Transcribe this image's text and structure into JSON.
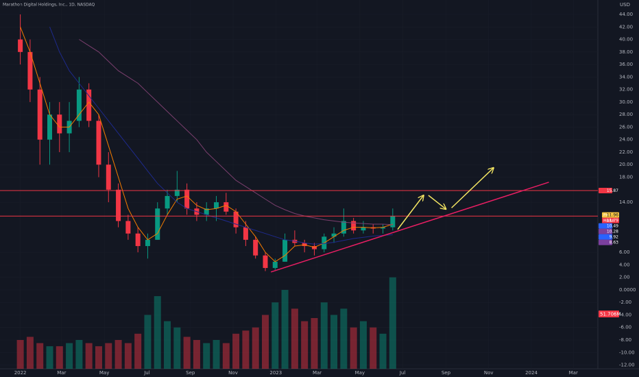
{
  "chart_data": {
    "type": "candlestick",
    "title": "Marathon Digital Holdings, Inc., 1D, NASDAQ",
    "currency": "USD",
    "up_color": "#089981",
    "down_color": "#f23645",
    "xlim": [
      -29,
      825
    ],
    "ylim": [
      -12.6,
      46.3
    ],
    "xticks": [
      {
        "value": 0,
        "label": "2022"
      },
      {
        "value": 59,
        "label": "Mar"
      },
      {
        "value": 120,
        "label": "May"
      },
      {
        "value": 181,
        "label": "Jul"
      },
      {
        "value": 243,
        "label": "Sep"
      },
      {
        "value": 304,
        "label": "Nov"
      },
      {
        "value": 365,
        "label": "2023"
      },
      {
        "value": 424,
        "label": "Mar"
      },
      {
        "value": 485,
        "label": "May"
      },
      {
        "value": 546,
        "label": "Jul"
      },
      {
        "value": 608,
        "label": "Sep"
      },
      {
        "value": 669,
        "label": "Nov"
      },
      {
        "value": 730,
        "label": "2024"
      },
      {
        "value": 790,
        "label": "Mar"
      }
    ],
    "yticks": [
      {
        "value": 44,
        "label": "44.00"
      },
      {
        "value": 42,
        "label": "42.00"
      },
      {
        "value": 40,
        "label": "40.00"
      },
      {
        "value": 38,
        "label": "38.00"
      },
      {
        "value": 36,
        "label": "36.00"
      },
      {
        "value": 34,
        "label": "34.00"
      },
      {
        "value": 32,
        "label": "32.00"
      },
      {
        "value": 30,
        "label": "30.00"
      },
      {
        "value": 28,
        "label": "28.00"
      },
      {
        "value": 26,
        "label": "26.00"
      },
      {
        "value": 24,
        "label": "24.00"
      },
      {
        "value": 22,
        "label": "22.00"
      },
      {
        "value": 20,
        "label": "20.00"
      },
      {
        "value": 18,
        "label": "18.00"
      },
      {
        "value": 14,
        "label": "14.00"
      },
      {
        "value": 6,
        "label": "6.00"
      },
      {
        "value": 4,
        "label": "4.00"
      },
      {
        "value": 2,
        "label": "2.00"
      },
      {
        "value": 0,
        "label": "0.0000"
      },
      {
        "value": -2,
        "label": "-2.00"
      },
      {
        "value": -4,
        "label": "-4.00"
      },
      {
        "value": -6,
        "label": "-6.00"
      },
      {
        "value": -8,
        "label": "-8.00"
      },
      {
        "value": -10,
        "label": "-10.00"
      },
      {
        "value": -12,
        "label": "-12.00"
      }
    ],
    "x": [
      0,
      14,
      28,
      42,
      56,
      70,
      84,
      98,
      112,
      126,
      140,
      154,
      168,
      182,
      196,
      210,
      224,
      238,
      252,
      266,
      280,
      294,
      308,
      322,
      336,
      350,
      364,
      378,
      392,
      406,
      420,
      434,
      448,
      462,
      476,
      490,
      504,
      518,
      532
    ],
    "open": [
      40,
      38,
      32,
      24,
      28,
      25,
      27,
      32,
      27,
      20,
      16,
      11,
      9,
      7,
      8,
      13,
      15,
      16,
      13,
      12,
      13,
      14,
      12.5,
      10,
      8,
      5.5,
      3.5,
      4.5,
      8,
      7.5,
      7,
      6.5,
      8.5,
      9,
      11,
      9.5,
      10,
      9.8,
      10
    ],
    "high": [
      44,
      40,
      34,
      30,
      30,
      30,
      34,
      33,
      28,
      22,
      17,
      12,
      10,
      9,
      14,
      16,
      19,
      17,
      14,
      14,
      15,
      15.5,
      13,
      11,
      8.5,
      6,
      5,
      9,
      9.5,
      8,
      7.5,
      9,
      10,
      13,
      11.5,
      11,
      10.5,
      10.5,
      13
    ],
    "low": [
      36,
      30,
      20,
      20,
      22,
      22,
      26,
      26,
      18,
      14,
      10,
      8,
      6,
      5,
      8,
      12,
      14,
      12,
      11,
      11,
      11,
      12,
      9,
      7,
      5,
      3,
      3.2,
      4.5,
      7,
      6,
      5.5,
      6,
      7.5,
      8.5,
      9,
      9,
      9,
      9,
      9.5
    ],
    "close": [
      38,
      32,
      24,
      28,
      25,
      27,
      32,
      27,
      20,
      16,
      11,
      9,
      7,
      8,
      13,
      15,
      16,
      13,
      12,
      13,
      14,
      12.5,
      10,
      8,
      5.5,
      3.5,
      4.5,
      8,
      7.5,
      7,
      6.5,
      8.5,
      9,
      11,
      9.5,
      10,
      9.8,
      10,
      11.8
    ],
    "volume": [
      -8,
      -7.5,
      -8.5,
      -9,
      -9,
      -8.5,
      -8,
      -8.5,
      -9,
      -8.5,
      -8,
      -8.5,
      -7,
      -4,
      -1,
      -5,
      -6,
      -7.5,
      -8,
      -8.5,
      -8,
      -8.5,
      -7,
      -6.5,
      -6,
      -4,
      -2,
      0,
      -3,
      -5,
      -4.5,
      -2,
      -4,
      -3,
      -6,
      -5,
      -6,
      -7,
      2
    ],
    "series": [
      {
        "color": "#f57c00",
        "values": [
          42,
          38,
          33,
          28,
          26,
          26,
          28,
          30,
          28,
          23,
          18,
          13,
          10,
          8,
          9,
          12,
          14.5,
          15,
          13.5,
          12.8,
          13,
          13.5,
          12.5,
          10.5,
          8.5,
          6,
          4.5,
          5.5,
          7,
          7.2,
          6.8,
          7.5,
          8.5,
          9.5,
          10,
          10,
          9.9,
          10,
          10.5
        ]
      },
      {
        "color": "#7b3f6e",
        "values": [
          null,
          null,
          null,
          null,
          null,
          null,
          40,
          39,
          38,
          36.5,
          35,
          34,
          33,
          31.5,
          30,
          28.5,
          27,
          25.5,
          24,
          22,
          20.5,
          19,
          17.5,
          16.5,
          15.5,
          14.5,
          13.5,
          12.8,
          12.2,
          11.8,
          11.5,
          11.2,
          11,
          10.8,
          10.7,
          10.6,
          10.5,
          10.5,
          10.4
        ]
      },
      {
        "color": "#1e2a8c",
        "values": [
          null,
          null,
          null,
          42,
          38,
          35,
          33,
          31,
          29,
          27,
          25,
          23,
          21,
          19,
          17,
          15.5,
          14,
          13,
          12.5,
          12,
          11.5,
          11,
          10.5,
          10,
          9.5,
          9,
          8.5,
          8,
          7.8,
          7.5,
          7.3,
          7.4,
          7.6,
          7.9,
          8.2,
          8.4,
          8.6,
          8.7,
          8.8
        ]
      }
    ],
    "hlines": [
      {
        "value": 15.87,
        "color": "#f23645"
      },
      {
        "value": 11.79,
        "color": "#f23645"
      }
    ],
    "drawings": [
      {
        "color": "#e91e63",
        "x": [
          358,
          755
        ],
        "y": [
          2.86,
          17.2
        ]
      },
      {
        "color": "#f5e663",
        "x": [
          539,
          576
        ],
        "y": [
          9.65,
          15.1
        ],
        "arrow": true
      },
      {
        "color": "#f5e663",
        "x": [
          583,
          608
        ],
        "y": [
          15.1,
          12.9
        ],
        "arrow": true
      },
      {
        "color": "#f5e663",
        "x": [
          616,
          676
        ],
        "y": [
          13.1,
          19.5
        ],
        "arrow": true
      }
    ],
    "price_labels": [
      {
        "value": 15.87,
        "color": "#f23645"
      },
      {
        "value": 11.96,
        "color": "#f5c542",
        "symbol": "PH"
      },
      {
        "value": 11.79,
        "color": "#f23645",
        "symbol": "MARA"
      },
      {
        "value": 10.49,
        "color": "#2962ff"
      },
      {
        "value": 10.28,
        "color": "#7b3f9e"
      },
      {
        "value": 9.92,
        "color": "#2962ff"
      },
      {
        "value": 8.63,
        "color": "#7b3f9e"
      }
    ],
    "volume_label": "51.706M"
  }
}
